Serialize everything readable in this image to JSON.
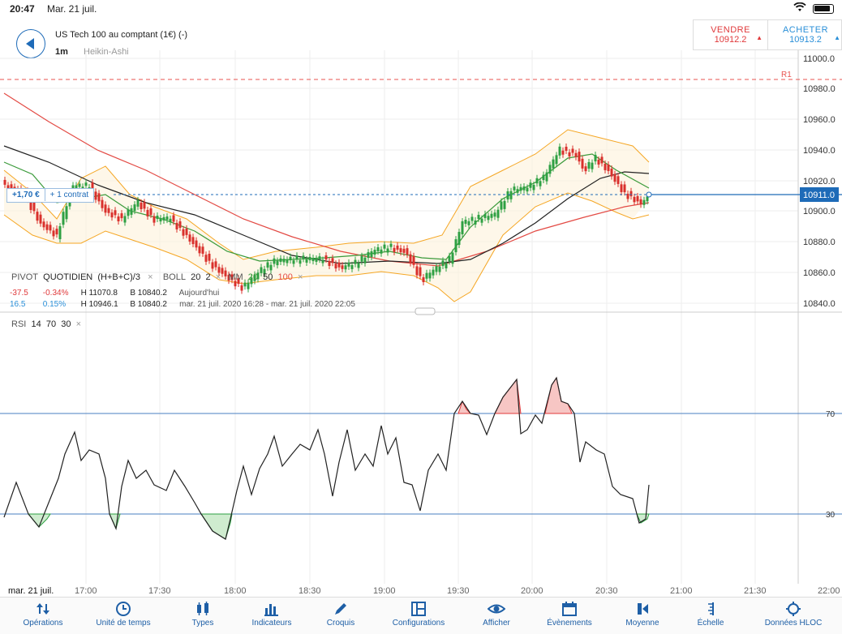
{
  "status": {
    "time": "20:47",
    "date": "Mar. 21 juil."
  },
  "instrument": {
    "name": "US Tech 100 au comptant (1€) (-)",
    "timeframe": "1m",
    "chart_type": "Heikin-Ashi"
  },
  "trade": {
    "sell_label": "VENDRE",
    "sell_price": "10912.2",
    "buy_label": "ACHETER",
    "buy_price": "10913.2"
  },
  "price_axis": {
    "ticks": [
      "11000.0",
      "10980.0",
      "10960.0",
      "10940.0",
      "10920.0",
      "10900.0",
      "10880.0",
      "10860.0",
      "10840.0"
    ],
    "current": "10911.0",
    "r1_label": "R1"
  },
  "position": {
    "pnl": "+1,70 €",
    "contracts": "+ 1 contrat"
  },
  "legend": {
    "pivot": {
      "label": "PIVOT",
      "type": "QUOTIDIEN",
      "formula": "(H+B+C)/3"
    },
    "boll": {
      "label": "BOLL",
      "p1": "20",
      "p2": "2"
    },
    "mm": {
      "label": "MM",
      "p1": "20",
      "p2": "50",
      "p3": "100"
    },
    "row1": {
      "chg": "-37.5",
      "pct": "-0.34%",
      "h": "H 11070.8",
      "b": "B 10840.2",
      "period": "Aujourd'hui"
    },
    "row2": {
      "chg": "16.5",
      "pct": "0.15%",
      "h": "H 10946.1",
      "b": "B 10840.2",
      "period": "mar. 21 juil. 2020 16:28 - mar. 21 juil. 2020 22:05"
    },
    "close": "×"
  },
  "rsi": {
    "label": "RSI",
    "p1": "14",
    "p2": "70",
    "p3": "30",
    "close": "×",
    "level_high": "70",
    "level_low": "30"
  },
  "time_axis": {
    "date": "mar. 21 juil.",
    "ticks": [
      "17:00",
      "17:30",
      "18:00",
      "18:30",
      "19:00",
      "19:30",
      "20:00",
      "20:30",
      "21:00",
      "21:30",
      "22:00"
    ]
  },
  "tabs": [
    {
      "label": "Opérations",
      "icon": "arrows-updown-icon"
    },
    {
      "label": "Unité de temps",
      "icon": "clock-icon"
    },
    {
      "label": "Types",
      "icon": "candles-icon"
    },
    {
      "label": "Indicateurs",
      "icon": "bars-icon"
    },
    {
      "label": "Croquis",
      "icon": "pencil-icon"
    },
    {
      "label": "Configurations",
      "icon": "layout-icon"
    },
    {
      "label": "Afficher",
      "icon": "eye-icon"
    },
    {
      "label": "Évènements",
      "icon": "calendar-icon"
    },
    {
      "label": "Moyenne",
      "icon": "moyenne-icon"
    },
    {
      "label": "Échelle",
      "icon": "scale-icon"
    },
    {
      "label": "Données HLOC",
      "icon": "crosshair-icon"
    }
  ],
  "colors": {
    "up": "#2ea043",
    "down": "#d9302c",
    "accent": "#1e6bb8",
    "band": "#f5a623",
    "ma20": "#3a9a3a",
    "ma50": "#222222",
    "ma100": "#e34a44"
  }
}
